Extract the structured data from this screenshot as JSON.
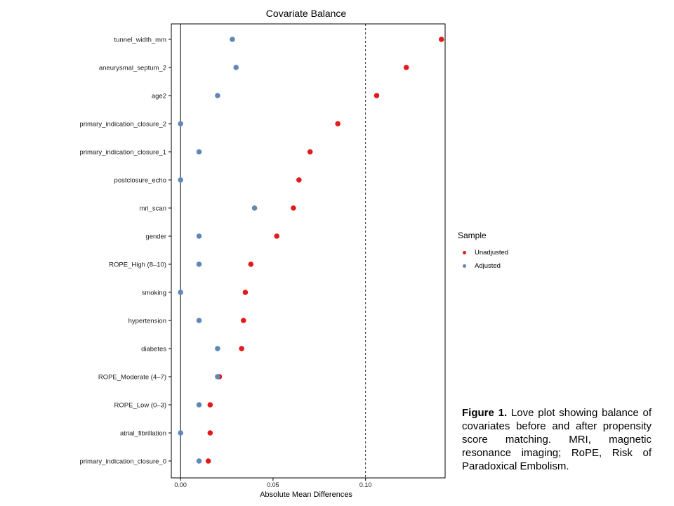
{
  "chart_data": {
    "type": "scatter",
    "title": "Covariate Balance",
    "xlabel": "Absolute Mean Differences",
    "ylabel": "",
    "xlim": [
      -0.005,
      0.143
    ],
    "xticks": [
      0.0,
      0.05,
      0.1
    ],
    "xtick_labels": [
      "0.00",
      "0.05",
      "0.10"
    ],
    "threshold": 0.1,
    "vline": 0.0,
    "categories": [
      "tunnel_width_mm",
      "aneurysmal_septum_2",
      "age2",
      "primary_indication_closure_2",
      "primary_indication_closure_1",
      "postclosure_echo",
      "mri_scan",
      "gender",
      "ROPE_High (8–10)",
      "smoking",
      "hypertension",
      "diabetes",
      "ROPE_Moderate (4–7)",
      "ROPE_Low (0–3)",
      "atrial_fibrillation",
      "primary_indication_closure_0"
    ],
    "series": [
      {
        "name": "Unadjusted",
        "color": "#e31a1c",
        "values": [
          0.141,
          0.122,
          0.106,
          0.085,
          0.07,
          0.064,
          0.061,
          0.052,
          0.038,
          0.035,
          0.034,
          0.033,
          0.021,
          0.016,
          0.016,
          0.015
        ]
      },
      {
        "name": "Adjusted",
        "color": "#5f87b8",
        "values": [
          0.028,
          0.03,
          0.02,
          0.0,
          0.01,
          0.0,
          0.04,
          0.01,
          0.01,
          0.0,
          0.01,
          0.02,
          0.02,
          0.01,
          0.0,
          0.01
        ]
      }
    ],
    "grid": false,
    "legend_position": "right"
  },
  "legend": {
    "title": "Sample",
    "items": [
      {
        "label": "Unadjusted",
        "color": "#e31a1c"
      },
      {
        "label": "Adjusted",
        "color": "#5f87b8"
      }
    ]
  },
  "caption": {
    "bold": "Figure 1.",
    "text": " Love plot showing balance of covariates before and after propensity score matching. MRI, magnetic resonance imaging; RoPE, Risk of Paradoxical Embolism."
  }
}
